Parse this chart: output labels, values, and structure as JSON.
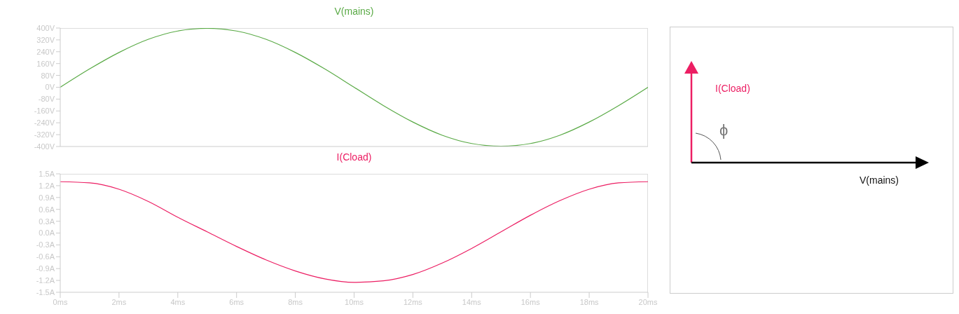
{
  "chart_data": [
    {
      "type": "line",
      "title": "V(mains)",
      "x": [
        0,
        1,
        2,
        3,
        4,
        5,
        6,
        7,
        8,
        9,
        10,
        11,
        12,
        13,
        14,
        15,
        16,
        17,
        18,
        19,
        20
      ],
      "series": [
        {
          "color": "#5aaa46",
          "values": [
            0,
            124,
            235,
            324,
            380,
            398,
            380,
            324,
            235,
            124,
            0,
            -124,
            -235,
            -324,
            -380,
            -398,
            -380,
            -324,
            -235,
            -124,
            0
          ]
        }
      ],
      "xlim": [
        0,
        20
      ],
      "ylim": [
        -400,
        400
      ],
      "yticks": [
        {
          "value": 400,
          "label": "400V"
        },
        {
          "value": 320,
          "label": "320V"
        },
        {
          "value": 240,
          "label": "240V"
        },
        {
          "value": 160,
          "label": "160V"
        },
        {
          "value": 80,
          "label": "80V"
        },
        {
          "value": 0,
          "label": "0V"
        },
        {
          "value": -80,
          "label": "-80V"
        },
        {
          "value": -160,
          "label": "-160V"
        },
        {
          "value": -240,
          "label": "-240V"
        },
        {
          "value": -320,
          "label": "-320V"
        },
        {
          "value": -400,
          "label": "-400V"
        }
      ],
      "tick_labels": "y",
      "marker": "none",
      "line_style": "solid",
      "grid": false,
      "legend": false
    },
    {
      "type": "line",
      "title": "I(Cload)",
      "x": [
        0,
        1,
        2,
        3,
        4,
        5,
        6,
        7,
        8,
        9,
        10,
        11,
        12,
        13,
        14,
        15,
        16,
        17,
        18,
        19,
        20
      ],
      "series": [
        {
          "color": "#ec1e63",
          "values": [
            1.3,
            1.27,
            1.11,
            0.8,
            0.4,
            0.03,
            -0.34,
            -0.68,
            -0.96,
            -1.16,
            -1.25,
            -1.21,
            -1.05,
            -0.76,
            -0.39,
            0.03,
            0.45,
            0.82,
            1.11,
            1.27,
            1.3
          ]
        }
      ],
      "xlim": [
        0,
        20
      ],
      "ylim": [
        -1.5,
        1.5
      ],
      "xticks": [
        {
          "value": 0,
          "label": "0ms"
        },
        {
          "value": 2,
          "label": "2ms"
        },
        {
          "value": 4,
          "label": "4ms"
        },
        {
          "value": 6,
          "label": "6ms"
        },
        {
          "value": 8,
          "label": "8ms"
        },
        {
          "value": 10,
          "label": "10ms"
        },
        {
          "value": 12,
          "label": "12ms"
        },
        {
          "value": 14,
          "label": "14ms"
        },
        {
          "value": 16,
          "label": "16ms"
        },
        {
          "value": 18,
          "label": "18ms"
        },
        {
          "value": 20,
          "label": "20ms"
        }
      ],
      "yticks": [
        {
          "value": 1.5,
          "label": "1.5A"
        },
        {
          "value": 1.2,
          "label": "1.2A"
        },
        {
          "value": 0.9,
          "label": "0.9A"
        },
        {
          "value": 0.6,
          "label": "0.6A"
        },
        {
          "value": 0.3,
          "label": "0.3A"
        },
        {
          "value": 0,
          "label": "0.0A"
        },
        {
          "value": -0.3,
          "label": "-0.3A"
        },
        {
          "value": -0.6,
          "label": "-0.6A"
        },
        {
          "value": -0.9,
          "label": "-0.9A"
        },
        {
          "value": -1.2,
          "label": "-1.2A"
        },
        {
          "value": -1.5,
          "label": "-1.5A"
        }
      ],
      "marker": "none",
      "line_style": "solid",
      "grid": false,
      "legend": false
    },
    {
      "type": "other",
      "annotations": [
        "I(Cload)",
        "ϕ",
        "V(mains)"
      ]
    }
  ]
}
